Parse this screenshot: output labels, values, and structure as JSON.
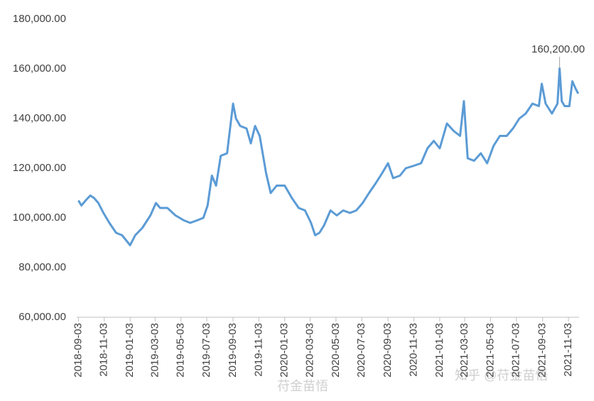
{
  "chart_data": {
    "type": "line",
    "x": [
      "2018-09-03",
      "2018-09-10",
      "2018-09-20",
      "2018-10-01",
      "2018-10-10",
      "2018-10-20",
      "2018-11-01",
      "2018-11-15",
      "2018-12-01",
      "2018-12-15",
      "2019-01-03",
      "2019-01-15",
      "2019-02-01",
      "2019-02-20",
      "2019-03-05",
      "2019-03-15",
      "2019-04-01",
      "2019-04-20",
      "2019-05-10",
      "2019-05-25",
      "2019-06-10",
      "2019-06-25",
      "2019-07-05",
      "2019-07-15",
      "2019-07-25",
      "2019-08-05",
      "2019-08-20",
      "2019-09-03",
      "2019-09-10",
      "2019-09-20",
      "2019-10-05",
      "2019-10-15",
      "2019-10-25",
      "2019-11-05",
      "2019-11-20",
      "2019-12-01",
      "2019-12-15",
      "2020-01-03",
      "2020-01-20",
      "2020-02-05",
      "2020-02-20",
      "2020-03-05",
      "2020-03-15",
      "2020-03-25",
      "2020-04-05",
      "2020-04-20",
      "2020-05-05",
      "2020-05-20",
      "2020-06-05",
      "2020-06-20",
      "2020-07-05",
      "2020-07-20",
      "2020-08-05",
      "2020-08-20",
      "2020-09-03",
      "2020-09-15",
      "2020-10-01",
      "2020-10-15",
      "2020-11-03",
      "2020-11-20",
      "2020-12-05",
      "2020-12-20",
      "2021-01-03",
      "2021-01-20",
      "2021-02-05",
      "2021-02-20",
      "2021-03-01",
      "2021-03-10",
      "2021-03-25",
      "2021-04-10",
      "2021-04-25",
      "2021-05-10",
      "2021-05-25",
      "2021-06-10",
      "2021-06-25",
      "2021-07-10",
      "2021-07-25",
      "2021-08-10",
      "2021-08-25",
      "2021-09-01",
      "2021-09-10",
      "2021-09-25",
      "2021-10-08",
      "2021-10-13",
      "2021-10-18",
      "2021-10-25",
      "2021-11-05",
      "2021-11-12",
      "2021-11-20",
      "2021-11-26"
    ],
    "series": [
      {
        "color": "#5b9bd5",
        "values": [
          107000,
          105000,
          107000,
          109000,
          108000,
          106000,
          102000,
          98000,
          94000,
          93000,
          89000,
          93000,
          96000,
          101000,
          106000,
          104000,
          104000,
          101000,
          99000,
          98000,
          99000,
          100000,
          105000,
          117000,
          113000,
          125000,
          126000,
          146000,
          140000,
          137000,
          136000,
          130000,
          137000,
          133000,
          118000,
          110000,
          113000,
          113000,
          108000,
          104000,
          103000,
          98000,
          93000,
          94000,
          97000,
          103000,
          101000,
          103000,
          102000,
          103000,
          106000,
          110000,
          114000,
          118000,
          122000,
          116000,
          117000,
          120000,
          121000,
          122000,
          128000,
          131000,
          128000,
          138000,
          135000,
          133000,
          147000,
          124000,
          123000,
          126000,
          122000,
          129000,
          133000,
          133000,
          136000,
          140000,
          142000,
          146000,
          145000,
          154000,
          146000,
          142000,
          146000,
          160200,
          147000,
          145000,
          145000,
          155000,
          152000,
          150000
        ]
      }
    ],
    "xlim": [
      "2018-08-30",
      "2021-11-28"
    ],
    "xticks": [
      "2018-09-03",
      "2018-11-03",
      "2019-01-03",
      "2019-03-03",
      "2019-05-03",
      "2019-07-03",
      "2019-09-03",
      "2019-11-03",
      "2020-01-03",
      "2020-03-03",
      "2020-05-03",
      "2020-07-03",
      "2020-09-03",
      "2020-11-03",
      "2021-01-03",
      "2021-03-03",
      "2021-05-03",
      "2021-07-03",
      "2021-09-03",
      "2021-11-03"
    ],
    "ylim": [
      60000,
      180000
    ],
    "yticks": [
      {
        "value": 60000,
        "label": "60,000.00"
      },
      {
        "value": 80000,
        "label": "80,000.00"
      },
      {
        "value": 100000,
        "label": "100,000.00"
      },
      {
        "value": 120000,
        "label": "120,000.00"
      },
      {
        "value": 140000,
        "label": "140,000.00"
      },
      {
        "value": 160000,
        "label": "160,000.00"
      },
      {
        "value": 180000,
        "label": "180,000.00"
      }
    ],
    "annotation": {
      "x": "2021-10-13",
      "value": 160200,
      "label": "160,200.00"
    },
    "watermarks": [
      "知乎 @苻金苗悟",
      "苻金苗悟"
    ]
  }
}
